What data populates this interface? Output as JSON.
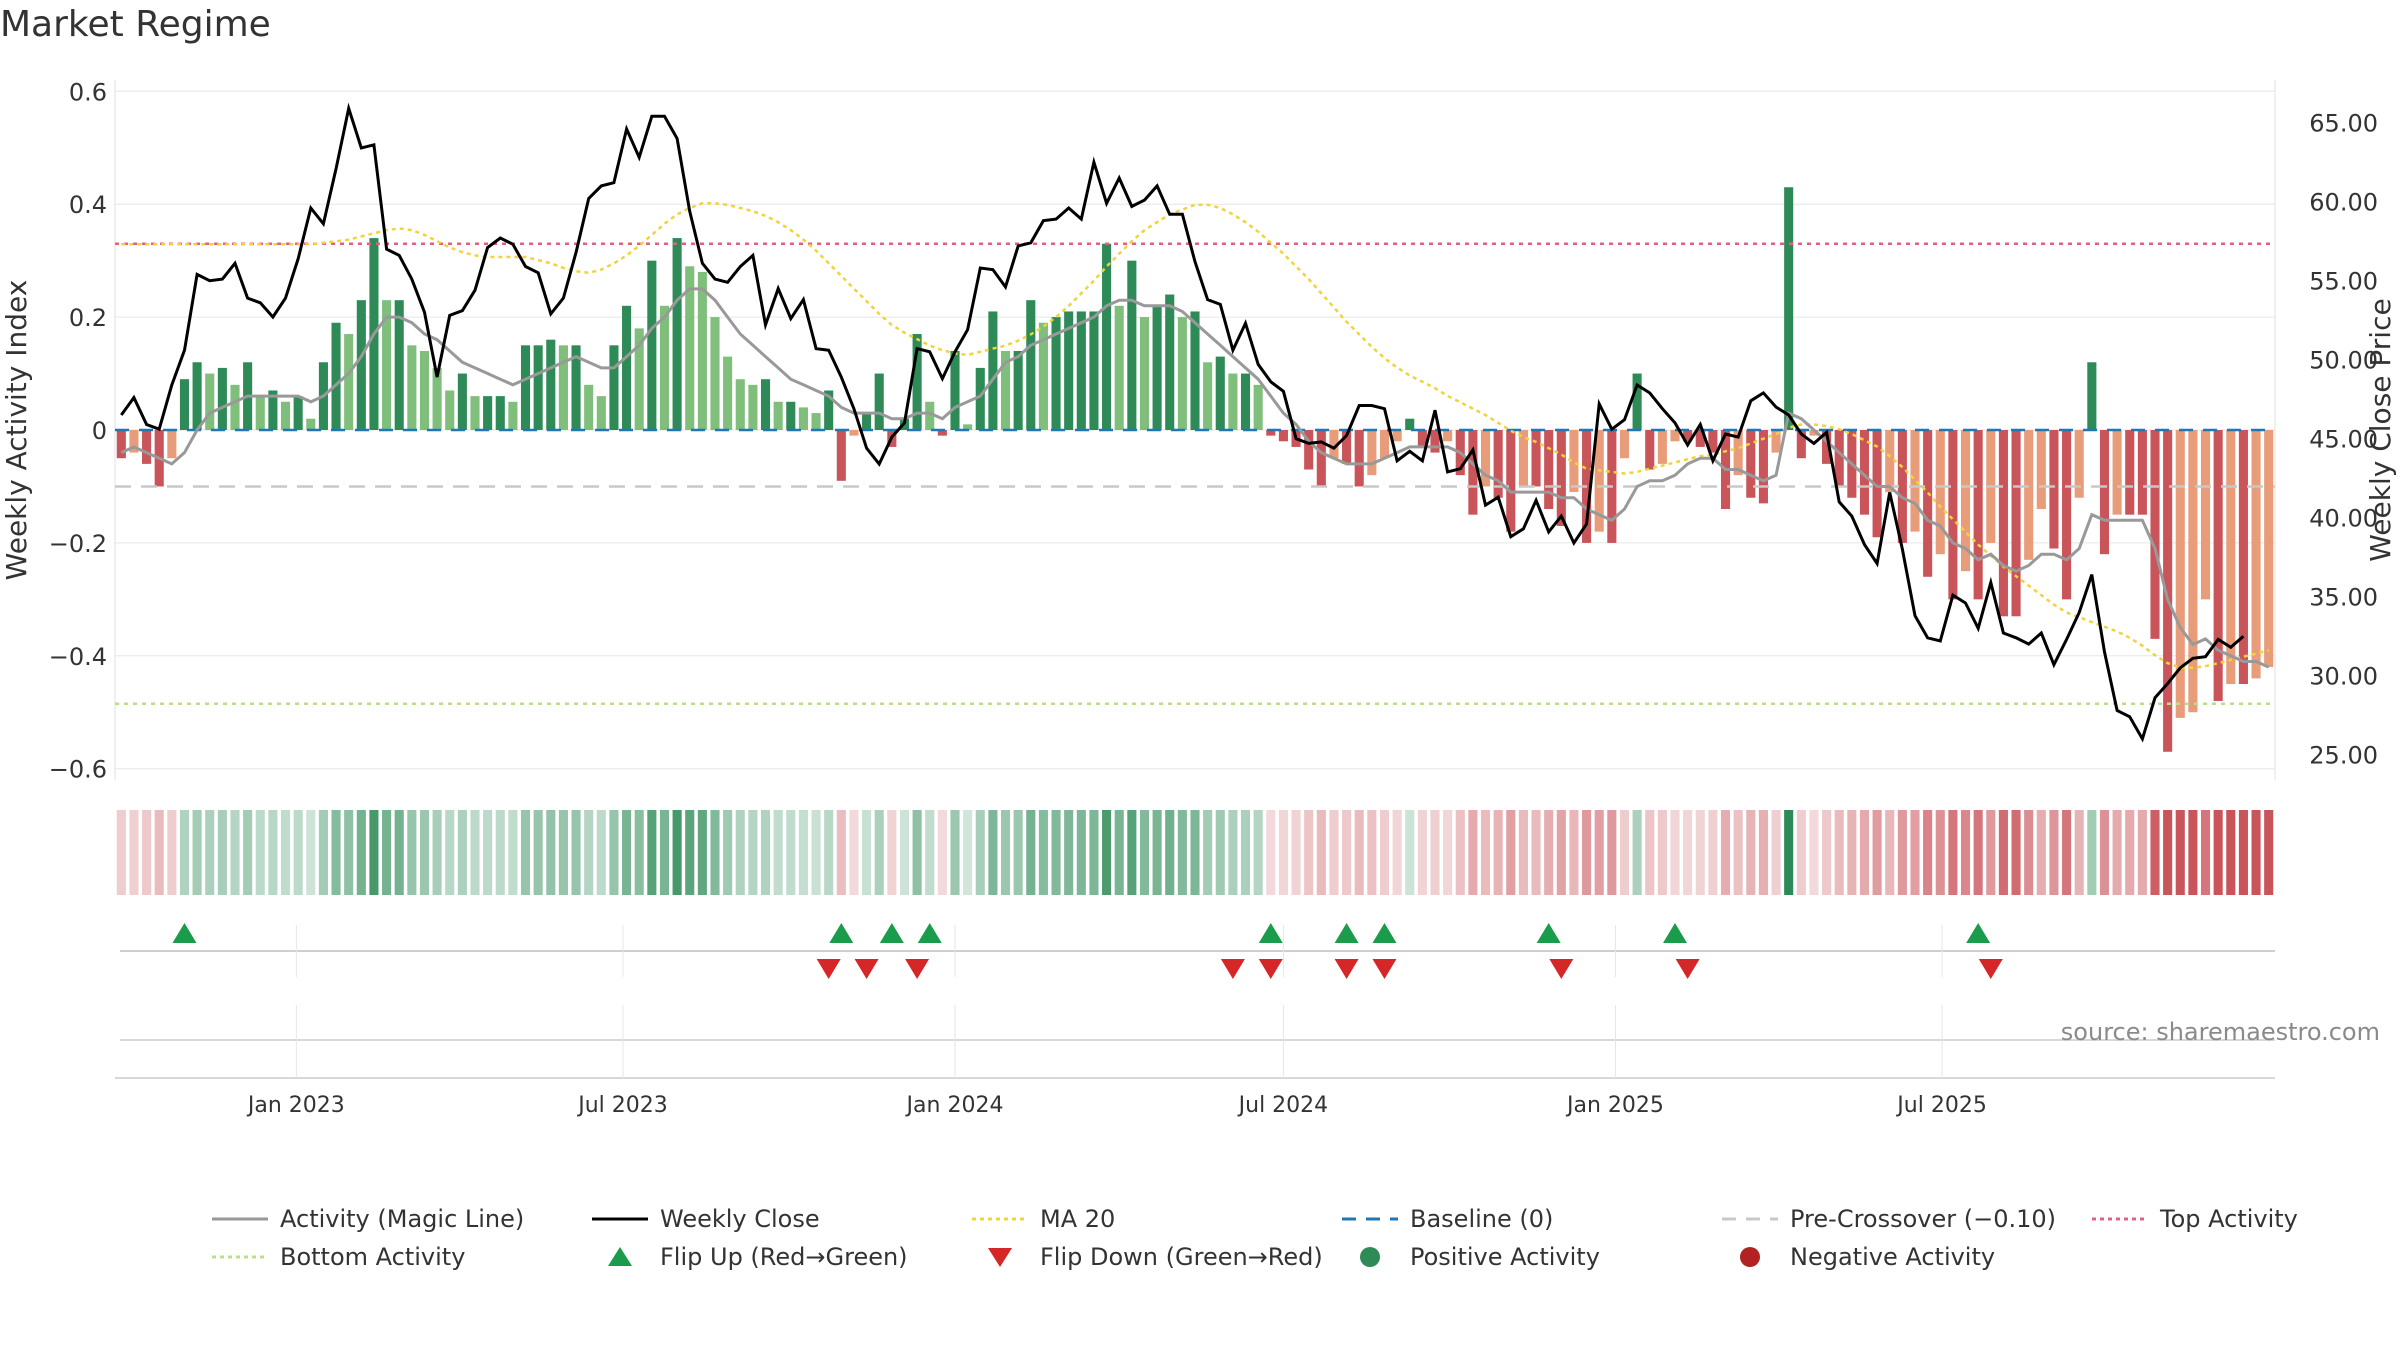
{
  "title": "Market Regime",
  "source_text": "source: sharemaestro.com",
  "colors": {
    "pos_strong": "#2e8b57",
    "pos_weak": "#7fbf7b",
    "neg_strong": "#c9545a",
    "neg_weak": "#e89c7a",
    "close": "#000000",
    "magic": "#999999",
    "ma": "#f0d43a",
    "baseline": "#1f77b4",
    "precross": "#c8c8c8",
    "top": "#e0607e",
    "bottom": "#b8e08a",
    "flip_up": "#1a9c4a",
    "flip_down": "#d62728",
    "grid": "#e6e6e6"
  },
  "chart_data": {
    "type": "bar",
    "start_date": "2022-09-26",
    "x_ticks": [
      "Jan 2023",
      "Jul 2023",
      "Jan 2024",
      "Jul 2024",
      "Jan 2025",
      "Jul 2025"
    ],
    "y_left": {
      "label": "Weekly Activity Index",
      "range": [
        -0.62,
        0.62
      ],
      "ticks": [
        0.6,
        0.4,
        0.2,
        0,
        -0.2,
        -0.4,
        -0.6
      ],
      "tick_labels": [
        "0.6",
        "0.4",
        "0.2",
        "0",
        "−0.2",
        "−0.4",
        "−0.6"
      ]
    },
    "y_right": {
      "label": "Weekly Close Price",
      "range": [
        23.4,
        67.7
      ],
      "ticks": [
        65,
        60,
        55,
        50,
        45,
        40,
        35,
        30,
        25
      ],
      "tick_labels": [
        "65.00",
        "60.00",
        "55.00",
        "50.00",
        "45.00",
        "40.00",
        "35.00",
        "30.00",
        "25.00"
      ]
    },
    "reference_lines": {
      "baseline": 0,
      "pre_crossover": -0.1,
      "top_activity": 0.33,
      "bottom_activity": -0.485
    },
    "series": [
      {
        "name": "Weekly Activity",
        "unit": "index",
        "values": [
          -0.05,
          -0.04,
          -0.06,
          -0.1,
          -0.05,
          0.09,
          0.12,
          0.1,
          0.11,
          0.08,
          0.12,
          0.06,
          0.07,
          0.05,
          0.06,
          0.02,
          0.12,
          0.19,
          0.17,
          0.23,
          0.34,
          0.23,
          0.23,
          0.15,
          0.14,
          0.11,
          0.07,
          0.1,
          0.06,
          0.06,
          0.06,
          0.05,
          0.15,
          0.15,
          0.16,
          0.15,
          0.15,
          0.08,
          0.06,
          0.15,
          0.22,
          0.18,
          0.3,
          0.22,
          0.34,
          0.29,
          0.28,
          0.2,
          0.13,
          0.09,
          0.08,
          0.09,
          0.05,
          0.05,
          0.04,
          0.03,
          0.07,
          -0.09,
          -0.01,
          0.03,
          0.1,
          -0.03,
          0.02,
          0.17,
          0.05,
          -0.01,
          0.14,
          0.01,
          0.11,
          0.21,
          0.14,
          0.14,
          0.23,
          0.19,
          0.2,
          0.21,
          0.21,
          0.21,
          0.33,
          0.22,
          0.3,
          0.2,
          0.22,
          0.24,
          0.2,
          0.21,
          0.12,
          0.13,
          0.1,
          0.1,
          0.08,
          -0.01,
          -0.02,
          -0.03,
          -0.07,
          -0.1,
          -0.05,
          -0.06,
          -0.1,
          -0.08,
          -0.05,
          -0.02,
          0.02,
          -0.03,
          -0.04,
          -0.02,
          -0.08,
          -0.15,
          -0.1,
          -0.12,
          -0.18,
          -0.1,
          -0.1,
          -0.14,
          -0.17,
          -0.11,
          -0.2,
          -0.18,
          -0.2,
          -0.05,
          0.1,
          -0.07,
          -0.06,
          -0.02,
          -0.02,
          -0.03,
          -0.04,
          -0.14,
          -0.08,
          -0.12,
          -0.13,
          -0.04,
          0.43,
          -0.05,
          -0.01,
          -0.06,
          -0.1,
          -0.12,
          -0.15,
          -0.19,
          -0.11,
          -0.2,
          -0.18,
          -0.26,
          -0.22,
          -0.3,
          -0.25,
          -0.3,
          -0.2,
          -0.33,
          -0.33,
          -0.23,
          -0.14,
          -0.21,
          -0.3,
          -0.12,
          0.12,
          -0.22,
          -0.15,
          -0.15,
          -0.15,
          -0.37,
          -0.57,
          -0.51,
          -0.5,
          -0.3,
          -0.48,
          -0.45,
          -0.45,
          -0.44,
          -0.42
        ]
      },
      {
        "name": "Activity (Magic Line)",
        "unit": "index",
        "values": [
          -0.04,
          -0.03,
          -0.04,
          -0.05,
          -0.06,
          -0.04,
          0.0,
          0.03,
          0.04,
          0.05,
          0.06,
          0.06,
          0.06,
          0.06,
          0.06,
          0.05,
          0.06,
          0.08,
          0.1,
          0.13,
          0.17,
          0.2,
          0.2,
          0.19,
          0.17,
          0.16,
          0.14,
          0.12,
          0.11,
          0.1,
          0.09,
          0.08,
          0.09,
          0.1,
          0.11,
          0.12,
          0.13,
          0.12,
          0.11,
          0.11,
          0.13,
          0.15,
          0.18,
          0.2,
          0.23,
          0.25,
          0.25,
          0.23,
          0.2,
          0.17,
          0.15,
          0.13,
          0.11,
          0.09,
          0.08,
          0.07,
          0.06,
          0.04,
          0.03,
          0.03,
          0.03,
          0.02,
          0.02,
          0.03,
          0.03,
          0.02,
          0.04,
          0.05,
          0.06,
          0.09,
          0.12,
          0.13,
          0.15,
          0.16,
          0.17,
          0.18,
          0.19,
          0.2,
          0.22,
          0.23,
          0.23,
          0.22,
          0.22,
          0.22,
          0.21,
          0.19,
          0.17,
          0.15,
          0.13,
          0.11,
          0.09,
          0.06,
          0.03,
          0.01,
          -0.02,
          -0.04,
          -0.05,
          -0.06,
          -0.06,
          -0.06,
          -0.05,
          -0.04,
          -0.03,
          -0.03,
          -0.03,
          -0.03,
          -0.04,
          -0.06,
          -0.08,
          -0.09,
          -0.11,
          -0.11,
          -0.11,
          -0.11,
          -0.12,
          -0.12,
          -0.14,
          -0.15,
          -0.16,
          -0.14,
          -0.1,
          -0.09,
          -0.09,
          -0.08,
          -0.06,
          -0.05,
          -0.05,
          -0.07,
          -0.07,
          -0.08,
          -0.09,
          -0.08,
          0.03,
          0.02,
          0.0,
          -0.02,
          -0.04,
          -0.06,
          -0.08,
          -0.1,
          -0.1,
          -0.12,
          -0.13,
          -0.16,
          -0.17,
          -0.2,
          -0.21,
          -0.23,
          -0.22,
          -0.24,
          -0.25,
          -0.24,
          -0.22,
          -0.22,
          -0.23,
          -0.21,
          -0.15,
          -0.16,
          -0.16,
          -0.16,
          -0.16,
          -0.21,
          -0.3,
          -0.35,
          -0.38,
          -0.37,
          -0.39,
          -0.4,
          -0.41,
          -0.41,
          -0.42
        ]
      },
      {
        "name": "Weekly Close",
        "unit": "price",
        "values": [
          46.5,
          47.6,
          45.9,
          45.6,
          48.4,
          50.6,
          55.4,
          55.0,
          55.1,
          56.1,
          53.9,
          53.6,
          52.7,
          53.9,
          56.4,
          59.6,
          58.6,
          62.1,
          65.9,
          63.4,
          63.6,
          57.0,
          56.6,
          55.1,
          53.0,
          48.9,
          52.8,
          53.1,
          54.4,
          57.1,
          57.7,
          57.3,
          55.9,
          55.5,
          52.9,
          53.9,
          56.8,
          60.2,
          61.0,
          61.2,
          64.6,
          62.8,
          65.4,
          65.4,
          64.0,
          59.4,
          56.1,
          55.1,
          54.9,
          55.9,
          56.6,
          52.2,
          54.5,
          52.6,
          53.8,
          50.7,
          50.6,
          48.9,
          46.9,
          44.4,
          43.4,
          45.1,
          46.0,
          50.7,
          50.5,
          48.8,
          50.5,
          51.9,
          55.8,
          55.7,
          54.6,
          57.2,
          57.4,
          58.8,
          58.9,
          59.6,
          58.9,
          62.5,
          59.9,
          61.5,
          59.7,
          60.1,
          61.0,
          59.2,
          59.2,
          56.2,
          53.8,
          53.5,
          50.6,
          52.3,
          49.7,
          48.6,
          48.0,
          45.0,
          44.7,
          44.8,
          44.4,
          45.2,
          47.1,
          47.1,
          46.9,
          43.6,
          44.2,
          43.6,
          46.8,
          42.9,
          43.1,
          44.3,
          40.8,
          41.3,
          38.8,
          39.3,
          41.1,
          39.1,
          40.1,
          38.4,
          39.6,
          47.2,
          45.6,
          46.2,
          48.4,
          47.9,
          46.9,
          46.0,
          44.6,
          45.9,
          43.6,
          45.3,
          45.1,
          47.4,
          47.9,
          47.0,
          46.5,
          45.3,
          44.7,
          45.4,
          41.0,
          40.1,
          38.3,
          37.1,
          41.6,
          38.0,
          33.8,
          32.4,
          32.2,
          35.1,
          34.6,
          33.0,
          35.9,
          32.7,
          32.4,
          32.0,
          32.7,
          30.7,
          32.3,
          34.0,
          36.4,
          31.5,
          27.8,
          27.4,
          26.0,
          28.6,
          29.5,
          30.5,
          31.1,
          31.2,
          32.3,
          31.8,
          32.5
        ]
      },
      {
        "name": "MA 20",
        "unit": "price",
        "values": [
          57.3,
          57.3,
          57.3,
          57.3,
          57.3,
          57.3,
          57.3,
          57.3,
          57.3,
          57.3,
          57.3,
          57.3,
          57.3,
          57.3,
          57.3,
          57.3,
          57.4,
          57.5,
          57.6,
          57.8,
          58.0,
          58.2,
          58.3,
          58.2,
          57.9,
          57.5,
          57.1,
          56.8,
          56.6,
          56.5,
          56.5,
          56.5,
          56.5,
          56.3,
          56.1,
          55.8,
          55.6,
          55.5,
          55.7,
          56.1,
          56.6,
          57.2,
          57.9,
          58.6,
          59.2,
          59.6,
          59.9,
          59.9,
          59.8,
          59.6,
          59.4,
          59.1,
          58.7,
          58.2,
          57.6,
          56.9,
          56.1,
          55.3,
          54.5,
          53.7,
          52.9,
          52.2,
          51.7,
          51.3,
          50.9,
          50.6,
          50.4,
          50.3,
          50.5,
          50.7,
          50.9,
          51.2,
          51.6,
          52.1,
          52.7,
          53.4,
          54.2,
          55.0,
          55.9,
          56.7,
          57.5,
          58.2,
          58.7,
          59.2,
          59.5,
          59.8,
          59.8,
          59.6,
          59.2,
          58.7,
          58.1,
          57.4,
          56.7,
          55.9,
          55.1,
          54.2,
          53.3,
          52.4,
          51.6,
          50.8,
          50.1,
          49.5,
          49.0,
          48.6,
          48.2,
          47.7,
          47.3,
          46.9,
          46.5,
          46.0,
          45.5,
          45.1,
          44.8,
          44.4,
          44.0,
          43.5,
          43.1,
          43.0,
          42.9,
          42.8,
          42.9,
          43.1,
          43.3,
          43.5,
          43.7,
          43.9,
          44.0,
          44.2,
          44.4,
          44.7,
          45.0,
          45.3,
          45.7,
          45.9,
          45.9,
          45.8,
          45.6,
          45.3,
          44.9,
          44.5,
          43.9,
          43.2,
          42.4,
          41.6,
          40.7,
          39.9,
          39.1,
          38.3,
          37.6,
          36.9,
          36.3,
          35.7,
          35.1,
          34.5,
          34.0,
          33.7,
          33.4,
          33.1,
          32.8,
          32.4,
          31.9,
          31.3,
          30.8,
          30.5,
          30.5,
          30.6,
          30.8,
          31.0,
          31.2,
          31.4,
          31.6
        ]
      }
    ],
    "flip_up_weeks": [
      5,
      57,
      61,
      64,
      91,
      97,
      100,
      113,
      123,
      147
    ],
    "flip_down_weeks": [
      56,
      59,
      63,
      88,
      91,
      97,
      100,
      114,
      124,
      148
    ],
    "legend": [
      {
        "label": "Activity (Magic Line)",
        "kind": "line",
        "color": "#999999",
        "style": "solid"
      },
      {
        "label": "Weekly Close",
        "kind": "line",
        "color": "#000000",
        "style": "solid"
      },
      {
        "label": "MA 20",
        "kind": "line",
        "color": "#f0d43a",
        "style": "dotted"
      },
      {
        "label": "Baseline (0)",
        "kind": "line",
        "color": "#1f77b4",
        "style": "dashed"
      },
      {
        "label": "Pre-Crossover (−0.10)",
        "kind": "line",
        "color": "#c8c8c8",
        "style": "dashed"
      },
      {
        "label": "Top Activity",
        "kind": "line",
        "color": "#e0607e",
        "style": "dotted"
      },
      {
        "label": "Bottom Activity",
        "kind": "line",
        "color": "#b8e08a",
        "style": "dotted"
      },
      {
        "label": "Flip Up (Red→Green)",
        "kind": "tri-up",
        "color": "#1a9c4a"
      },
      {
        "label": "Flip Down (Green→Red)",
        "kind": "tri-down",
        "color": "#d62728"
      },
      {
        "label": "Positive Activity",
        "kind": "dot",
        "color": "#2e8b57"
      },
      {
        "label": "Negative Activity",
        "kind": "dot",
        "color": "#b22222"
      }
    ]
  }
}
